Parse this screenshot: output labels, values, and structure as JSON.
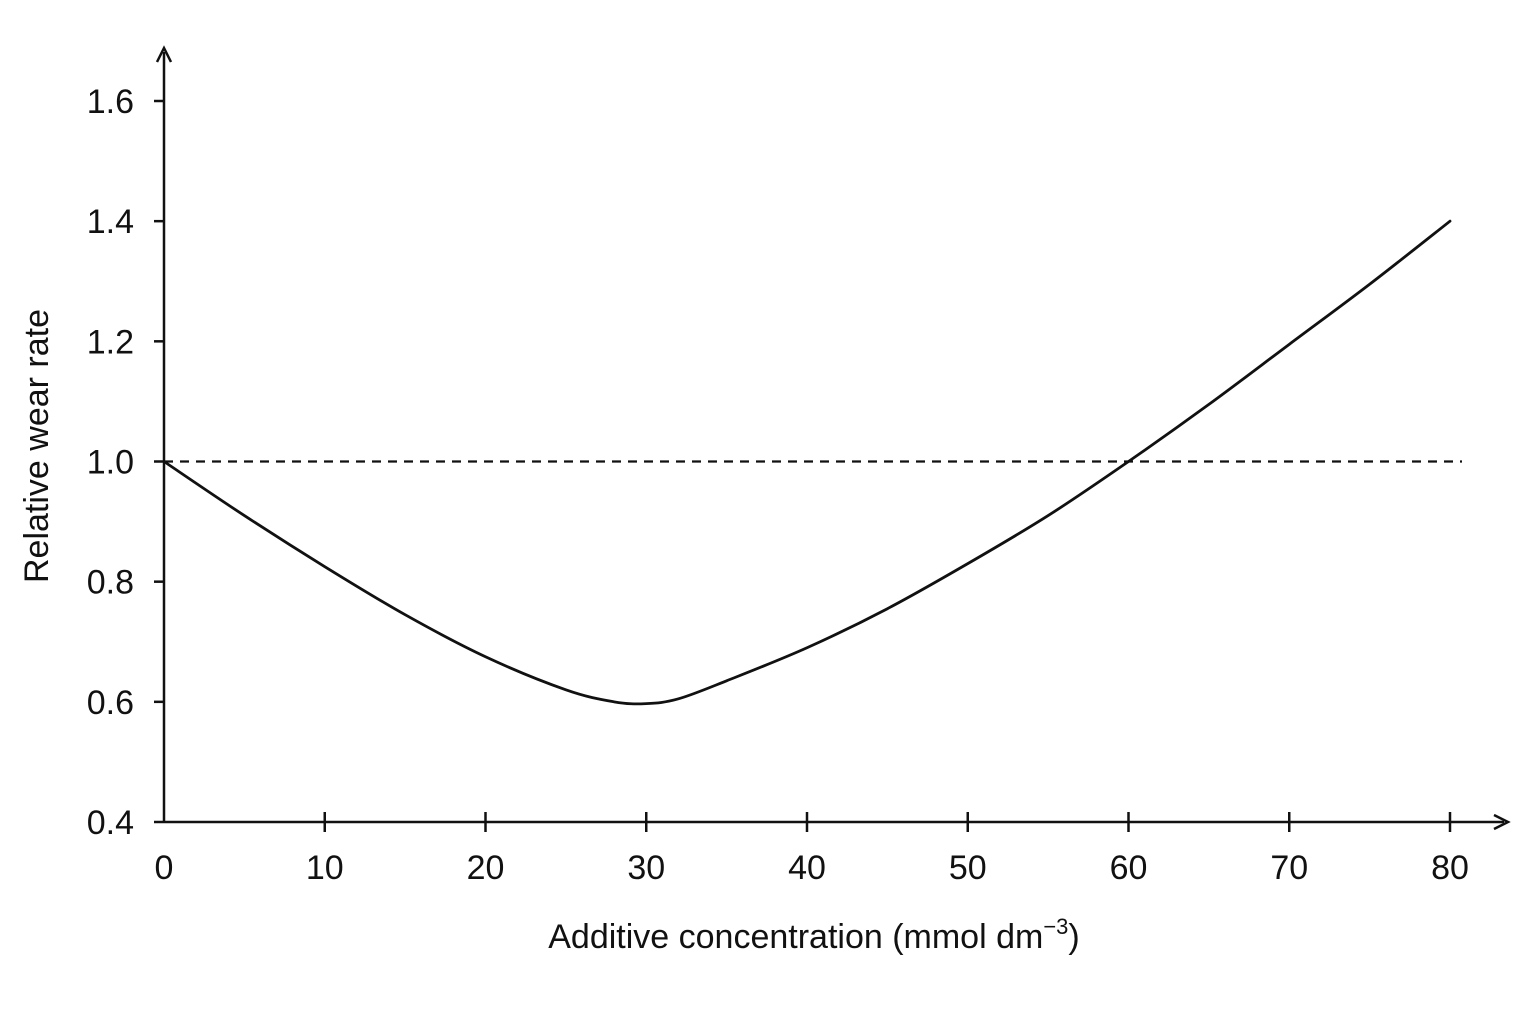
{
  "chart_data": {
    "type": "line",
    "title": "",
    "xlabel": "Additive concentration (mmol dm",
    "xlabel_superscript": "−3",
    "xlabel_suffix": ")",
    "ylabel": "Relative wear rate",
    "xlim": [
      0,
      80
    ],
    "ylim": [
      0.4,
      1.6
    ],
    "x_ticks": [
      0,
      10,
      20,
      30,
      40,
      50,
      60,
      70,
      80
    ],
    "x_tick_labels": [
      "0",
      "10",
      "20",
      "30",
      "40",
      "50",
      "60",
      "70",
      "80"
    ],
    "y_ticks": [
      0.4,
      0.6,
      0.8,
      1.0,
      1.2,
      1.4,
      1.6
    ],
    "y_tick_labels": [
      "0.4",
      "0.6",
      "0.8",
      "1.0",
      "1.2",
      "1.4",
      "1.6"
    ],
    "grid": false,
    "legend": "none",
    "series": [
      {
        "x": [
          0,
          5,
          10,
          15,
          20,
          25,
          28,
          30,
          32,
          35,
          40,
          45,
          50,
          55,
          60,
          65,
          70,
          75,
          80
        ],
        "y": [
          1.0,
          0.91,
          0.825,
          0.745,
          0.675,
          0.62,
          0.6,
          0.597,
          0.605,
          0.635,
          0.69,
          0.755,
          0.83,
          0.91,
          1.0,
          1.095,
          1.195,
          1.295,
          1.4
        ],
        "color": "#111111",
        "style": "solid"
      }
    ],
    "reference_lines": [
      {
        "axis": "y",
        "value": 1.0,
        "style": "dashed",
        "color": "#111111"
      }
    ]
  }
}
